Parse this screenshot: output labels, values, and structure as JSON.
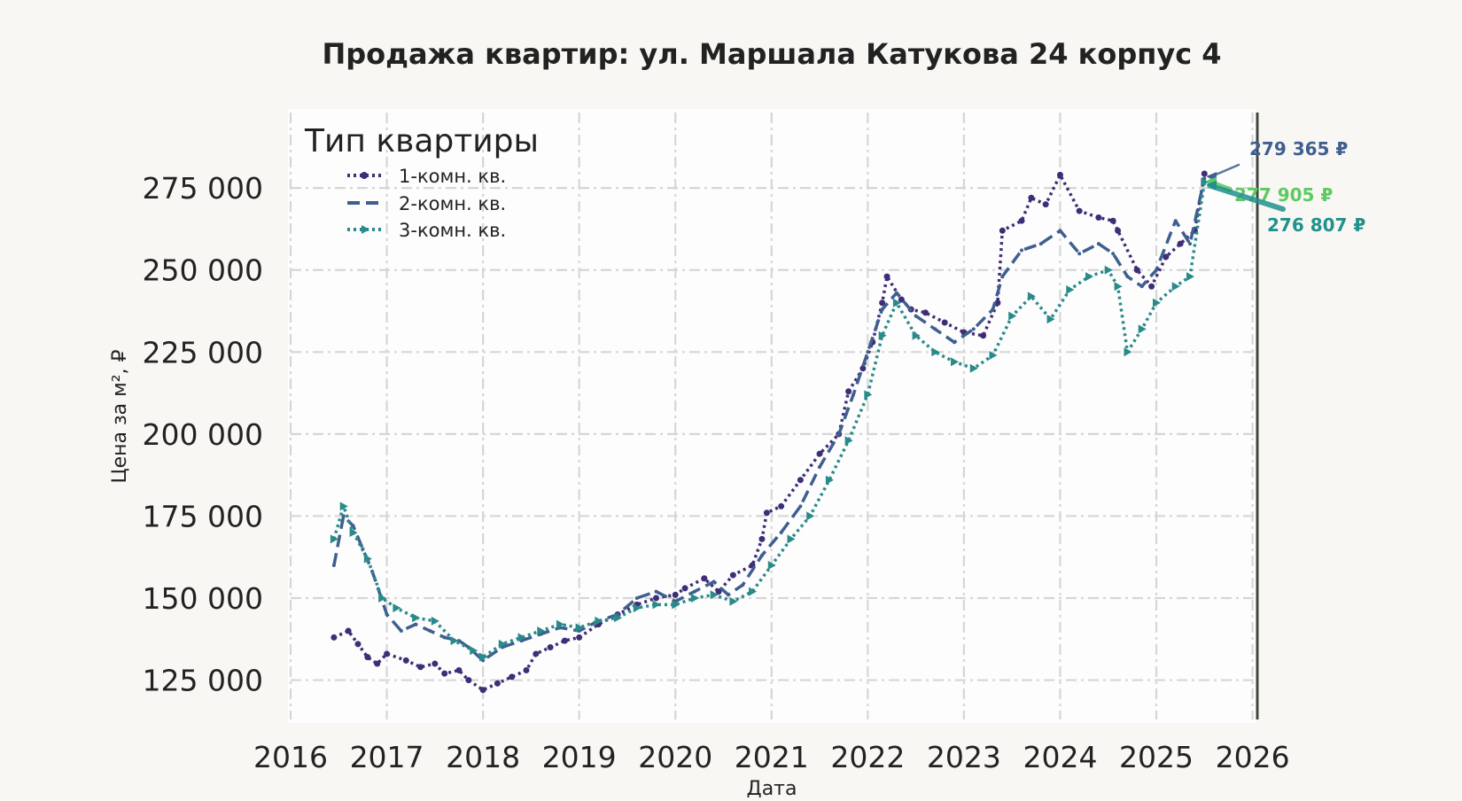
{
  "chart_data": {
    "type": "line",
    "title": "Продажа квартир: ул. Маршала Катукова 24 корпус 4",
    "xlabel": "Дата",
    "ylabel": "Цена за м², ₽",
    "xlim": [
      2016,
      2026.05
    ],
    "ylim": [
      113000,
      298000
    ],
    "x_ticks": [
      2016,
      2017,
      2018,
      2019,
      2020,
      2021,
      2022,
      2023,
      2024,
      2025,
      2026
    ],
    "x_tick_labels": [
      "2016",
      "2017",
      "2018",
      "2019",
      "2020",
      "2021",
      "2022",
      "2023",
      "2024",
      "2025",
      "2026"
    ],
    "y_ticks": [
      125000,
      150000,
      175000,
      200000,
      225000,
      250000,
      275000
    ],
    "y_tick_labels": [
      "125 000",
      "150 000",
      "175 000",
      "200 000",
      "225 000",
      "250 000",
      "275 000"
    ],
    "grid": true,
    "legend": {
      "title": "Тип квартиры",
      "placement": "top-left"
    },
    "series": [
      {
        "name": "1-комн. кв.",
        "color": "#3f2d76",
        "style": "dotted-circle",
        "x": [
          2016.45,
          2016.6,
          2016.7,
          2016.8,
          2016.9,
          2017.0,
          2017.2,
          2017.35,
          2017.5,
          2017.6,
          2017.75,
          2017.85,
          2018.0,
          2018.15,
          2018.3,
          2018.45,
          2018.55,
          2018.7,
          2018.85,
          2019.0,
          2019.2,
          2019.4,
          2019.6,
          2019.8,
          2020.0,
          2020.1,
          2020.3,
          2020.45,
          2020.6,
          2020.8,
          2020.9,
          2020.95,
          2021.1,
          2021.3,
          2021.5,
          2021.7,
          2021.8,
          2021.95,
          2022.05,
          2022.15,
          2022.2,
          2022.35,
          2022.45,
          2022.6,
          2022.8,
          2023.0,
          2023.2,
          2023.35,
          2023.4,
          2023.6,
          2023.7,
          2023.85,
          2024.0,
          2024.2,
          2024.4,
          2024.55,
          2024.6,
          2024.8,
          2024.95,
          2025.1,
          2025.25,
          2025.4,
          2025.5
        ],
        "y": [
          138000,
          140000,
          136000,
          132000,
          130000,
          133000,
          131000,
          129000,
          130000,
          127000,
          128000,
          125000,
          122000,
          124000,
          126000,
          128000,
          133000,
          135000,
          137000,
          138000,
          142000,
          145000,
          148000,
          150000,
          151000,
          153000,
          156000,
          152000,
          157000,
          160000,
          168000,
          176000,
          178000,
          186000,
          194000,
          200000,
          213000,
          220000,
          228000,
          240000,
          248000,
          241000,
          238000,
          237000,
          234000,
          231000,
          230000,
          240000,
          262000,
          265000,
          272000,
          270000,
          279000,
          268000,
          266000,
          265000,
          262000,
          250000,
          245000,
          254000,
          258000,
          262000,
          279365
        ]
      },
      {
        "name": "2-комн. кв.",
        "color": "#3e5f8f",
        "style": "dashed",
        "x": [
          2016.45,
          2016.55,
          2016.65,
          2016.75,
          2016.85,
          2017.0,
          2017.15,
          2017.3,
          2017.45,
          2017.6,
          2017.75,
          2017.85,
          2018.0,
          2018.2,
          2018.4,
          2018.6,
          2018.8,
          2019.0,
          2019.2,
          2019.4,
          2019.6,
          2019.8,
          2020.0,
          2020.2,
          2020.4,
          2020.55,
          2020.7,
          2020.9,
          2021.1,
          2021.3,
          2021.5,
          2021.7,
          2021.85,
          2022.0,
          2022.15,
          2022.3,
          2022.5,
          2022.7,
          2022.9,
          2023.1,
          2023.3,
          2023.4,
          2023.6,
          2023.8,
          2024.0,
          2024.2,
          2024.4,
          2024.55,
          2024.7,
          2024.85,
          2025.0,
          2025.2,
          2025.35,
          2025.5
        ],
        "y": [
          160000,
          175000,
          172000,
          165000,
          158000,
          145000,
          140000,
          142000,
          140000,
          138000,
          137000,
          135000,
          131000,
          135000,
          137000,
          139000,
          141000,
          140000,
          143000,
          145000,
          150000,
          152000,
          149000,
          152000,
          155000,
          151000,
          154000,
          163000,
          170000,
          178000,
          190000,
          200000,
          212000,
          225000,
          238000,
          243000,
          236000,
          232000,
          228000,
          232000,
          238000,
          248000,
          256000,
          258000,
          262000,
          255000,
          258000,
          255000,
          248000,
          245000,
          250000,
          265000,
          258000,
          277905
        ]
      },
      {
        "name": "3-комн. кв.",
        "color": "#2a8a8a",
        "style": "dotted-triangle",
        "x": [
          2016.45,
          2016.55,
          2016.65,
          2016.8,
          2016.95,
          2017.1,
          2017.3,
          2017.5,
          2017.7,
          2017.9,
          2018.0,
          2018.2,
          2018.4,
          2018.6,
          2018.8,
          2019.0,
          2019.2,
          2019.4,
          2019.6,
          2019.8,
          2020.0,
          2020.2,
          2020.4,
          2020.6,
          2020.8,
          2021.0,
          2021.2,
          2021.4,
          2021.6,
          2021.8,
          2022.0,
          2022.15,
          2022.3,
          2022.5,
          2022.7,
          2022.9,
          2023.1,
          2023.3,
          2023.5,
          2023.7,
          2023.9,
          2024.1,
          2024.3,
          2024.5,
          2024.6,
          2024.7,
          2024.85,
          2025.0,
          2025.2,
          2025.35,
          2025.5
        ],
        "y": [
          168000,
          178000,
          170000,
          162000,
          150000,
          147000,
          144000,
          143000,
          137000,
          134000,
          132000,
          136000,
          138000,
          140000,
          142000,
          141000,
          143000,
          144000,
          147000,
          148000,
          148000,
          150000,
          151000,
          149000,
          152000,
          160000,
          168000,
          175000,
          186000,
          198000,
          212000,
          230000,
          240000,
          230000,
          225000,
          222000,
          220000,
          224000,
          236000,
          242000,
          235000,
          244000,
          248000,
          250000,
          245000,
          225000,
          232000,
          240000,
          245000,
          248000,
          276807
        ]
      }
    ],
    "annotations": [
      {
        "text": "279 365 ₽",
        "color": "#3e5f8f",
        "series": "1-комн. кв."
      },
      {
        "text": "277 905 ₽",
        "color": "#5ec962",
        "series": "2-комн. кв."
      },
      {
        "text": "276 807 ₽",
        "color": "#21918c",
        "series": "3-комн. кв."
      }
    ]
  }
}
